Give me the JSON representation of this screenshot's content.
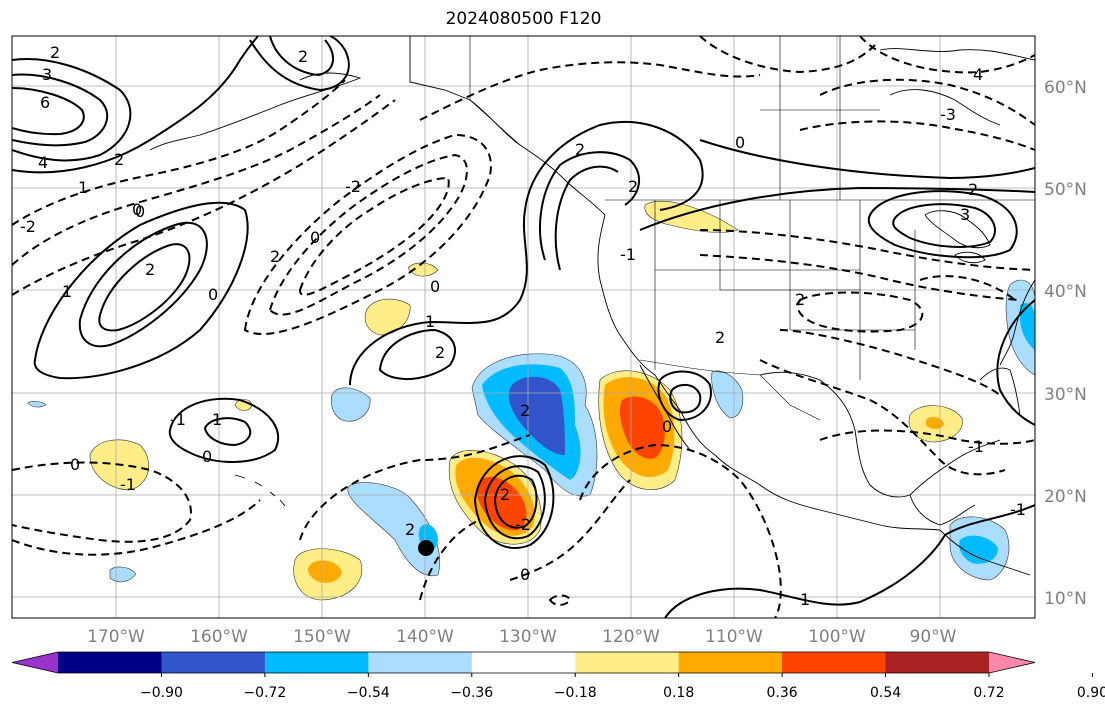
{
  "title": "2024080500 F120",
  "lon_labels": [
    "170°W",
    "160°W",
    "150°W",
    "140°W",
    "130°W",
    "120°W",
    "110°W",
    "100°W",
    "90°W"
  ],
  "lat_labels": [
    "60°N",
    "50°N",
    "40°N",
    "30°N",
    "20°N",
    "10°N"
  ],
  "colorbar": {
    "colors": [
      "#9933cc",
      "#000088",
      "#3355cc",
      "#00bbff",
      "#aaddff",
      "#ffffff",
      "#ffee88",
      "#ffaa00",
      "#ff4400",
      "#aa2222",
      "#ff88aa"
    ],
    "tick_labels": [
      "−0.90",
      "−0.72",
      "−0.54",
      "−0.36",
      "−0.18",
      "0.18",
      "0.36",
      "0.54",
      "0.72",
      "0.90"
    ]
  },
  "contour_labels": [
    "2",
    "3",
    "6",
    "4",
    "1",
    "2",
    "0",
    "2",
    "1",
    "0",
    "2",
    "1",
    "0",
    "-2",
    "-1",
    "0",
    "-1",
    "0",
    "-2",
    "0",
    "2",
    "2",
    "1",
    "0",
    "2",
    "2",
    "0",
    "-1",
    "0",
    "2",
    "2",
    "-2",
    "2",
    "0",
    "1",
    "-1",
    "-1",
    "-3",
    "2",
    "4",
    "2",
    "3",
    "2"
  ]
}
